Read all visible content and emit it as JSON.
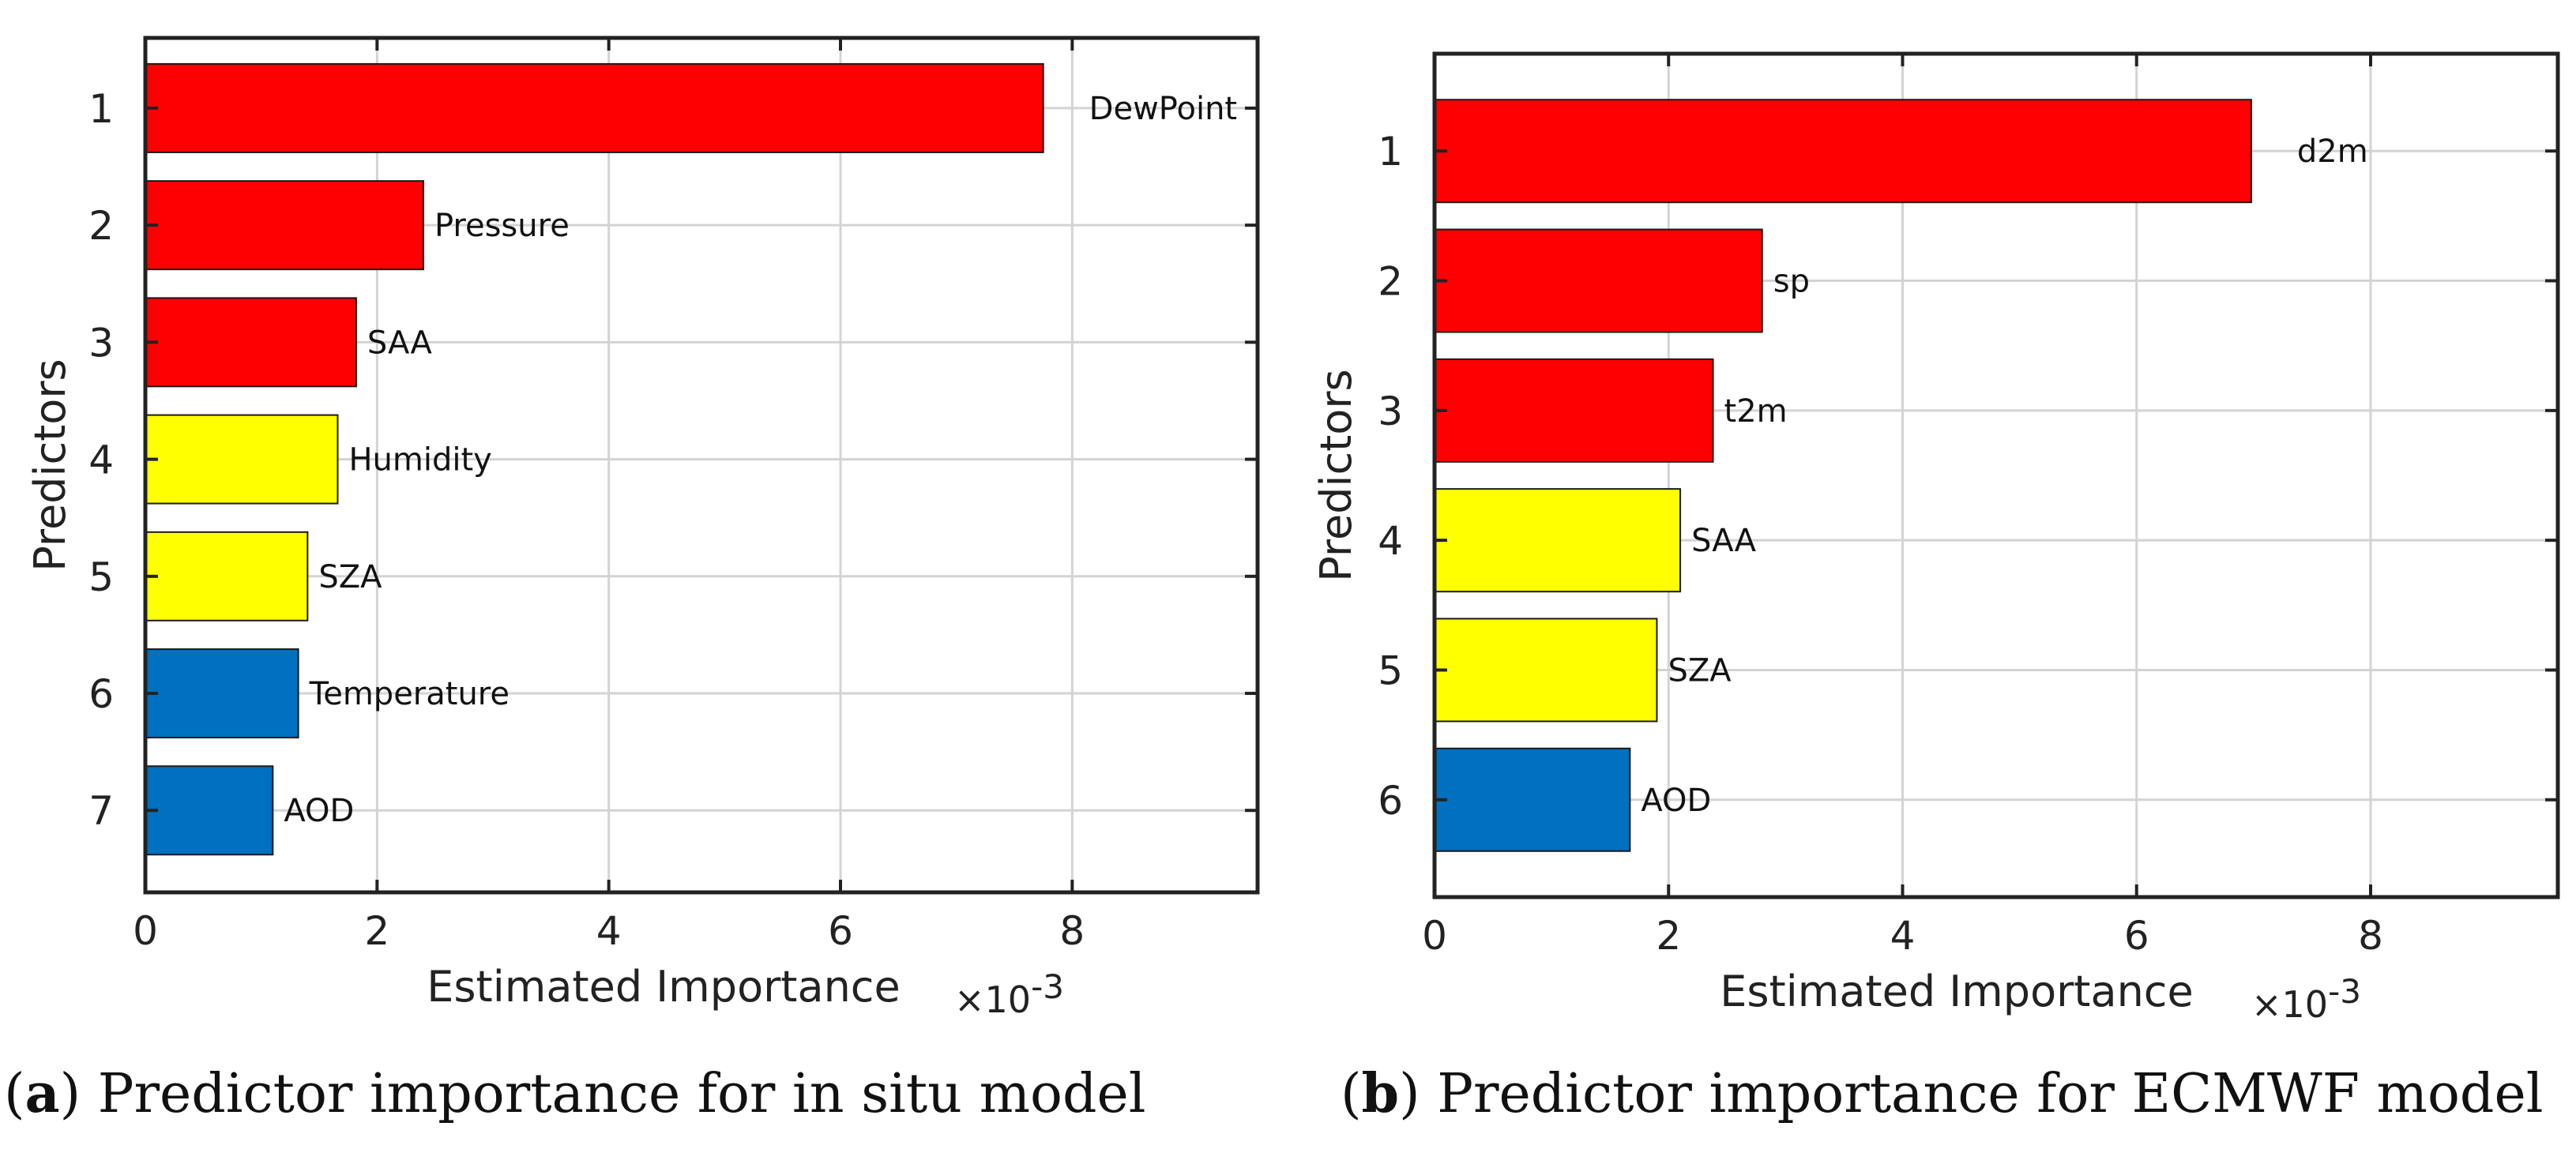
{
  "chart_data": [
    {
      "type": "bar",
      "orientation": "horizontal",
      "caption": {
        "letter": "a",
        "text": "Predictor importance for in situ model"
      },
      "xlabel": "Estimated Importance",
      "x_multiplier": "×10-3",
      "ylabel": "Predictors",
      "xlim": [
        0,
        9.6
      ],
      "xticks": [
        0,
        2,
        4,
        6,
        8
      ],
      "ylim": [
        0.4,
        7.7
      ],
      "yticks": [
        1,
        2,
        3,
        4,
        5,
        6,
        7
      ],
      "grid": true,
      "categories": [
        "1",
        "2",
        "3",
        "4",
        "5",
        "6",
        "7"
      ],
      "bar_labels": [
        "DewPoint",
        "Pressure",
        "SAA",
        "Humidity",
        "SZA",
        "Temperature",
        "AOD"
      ],
      "values": [
        7.75,
        2.4,
        1.82,
        1.66,
        1.4,
        1.32,
        1.1
      ],
      "colors": [
        "#ff0000",
        "#ff0000",
        "#ff0000",
        "#ffff00",
        "#ffff00",
        "#0070c0",
        "#0070c0"
      ]
    },
    {
      "type": "bar",
      "orientation": "horizontal",
      "caption": {
        "letter": "b",
        "text": "Predictor importance for ECMWF model"
      },
      "xlabel": "Estimated Importance",
      "x_multiplier": "×10-3",
      "ylabel": "Predictors",
      "xlim": [
        0,
        9.6
      ],
      "xticks": [
        0,
        2,
        4,
        6,
        8
      ],
      "ylim": [
        0.25,
        6.75
      ],
      "yticks": [
        1,
        2,
        3,
        4,
        5,
        6
      ],
      "grid": true,
      "categories": [
        "1",
        "2",
        "3",
        "4",
        "5",
        "6"
      ],
      "bar_labels": [
        "d2m",
        "sp",
        "t2m",
        "SAA",
        "SZA",
        "AOD"
      ],
      "values": [
        6.98,
        2.8,
        2.38,
        2.1,
        1.9,
        1.67
      ],
      "colors": [
        "#ff0000",
        "#ff0000",
        "#ff0000",
        "#ffff00",
        "#ffff00",
        "#0070c0"
      ]
    }
  ]
}
